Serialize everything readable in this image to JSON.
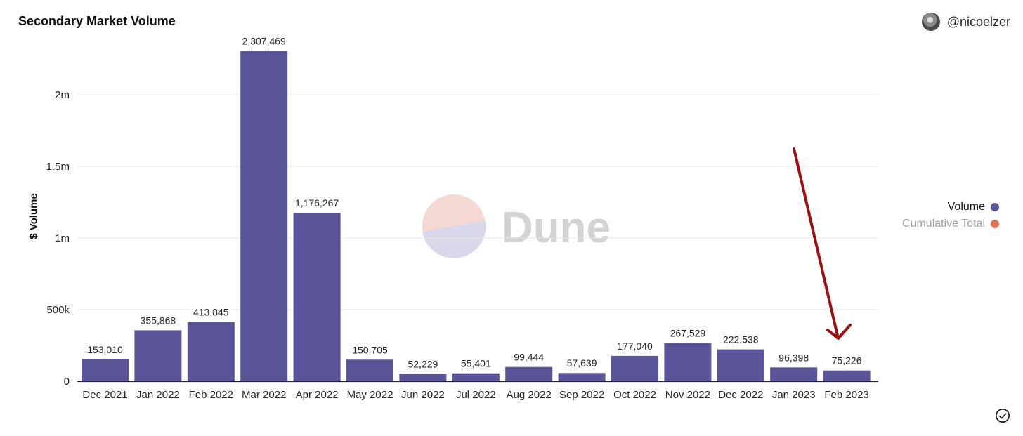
{
  "header": {
    "title": "Secondary Market Volume",
    "author": "@nicoelzer"
  },
  "watermark": {
    "text": "Dune"
  },
  "legend": {
    "items": [
      {
        "label": "Volume",
        "color": "#5a5499",
        "text_color": "#111111"
      },
      {
        "label": "Cumulative Total",
        "color": "#e0735a",
        "text_color": "#a0a0a0"
      }
    ]
  },
  "colors": {
    "bar": "#5a5499",
    "grid": "#e6e6e6",
    "arrow": "#9b1111"
  },
  "chart_data": {
    "type": "bar",
    "title": "Secondary Market Volume",
    "xlabel": "",
    "ylabel": "$ Volume",
    "ylim": [
      0,
      2307469
    ],
    "yticks": [
      0,
      500000,
      1000000,
      1500000,
      2000000
    ],
    "ytick_labels": [
      "0",
      "500k",
      "1m",
      "1.5m",
      "2m"
    ],
    "grid": true,
    "legend_placement": "right",
    "categories": [
      "Dec 2021",
      "Jan 2022",
      "Feb 2022",
      "Mar 2022",
      "Apr 2022",
      "May 2022",
      "Jun 2022",
      "Jul 2022",
      "Aug 2022",
      "Sep 2022",
      "Oct 2022",
      "Nov 2022",
      "Dec 2022",
      "Jan 2023",
      "Feb 2023"
    ],
    "series": [
      {
        "name": "Volume",
        "values": [
          153010,
          355868,
          413845,
          2307469,
          1176267,
          150705,
          52229,
          55401,
          99444,
          57639,
          177040,
          267529,
          222538,
          96398,
          75226
        ],
        "value_labels": [
          "153,010",
          "355,868",
          "413,845",
          "2,307,469",
          "1,176,267",
          "150,705",
          "52,229",
          "55,401",
          "99,444",
          "57,639",
          "177,040",
          "267,529",
          "222,538",
          "96,398",
          "75,226"
        ]
      }
    ],
    "annotations": [
      {
        "type": "arrow",
        "points_to": "Feb 2023"
      }
    ]
  }
}
